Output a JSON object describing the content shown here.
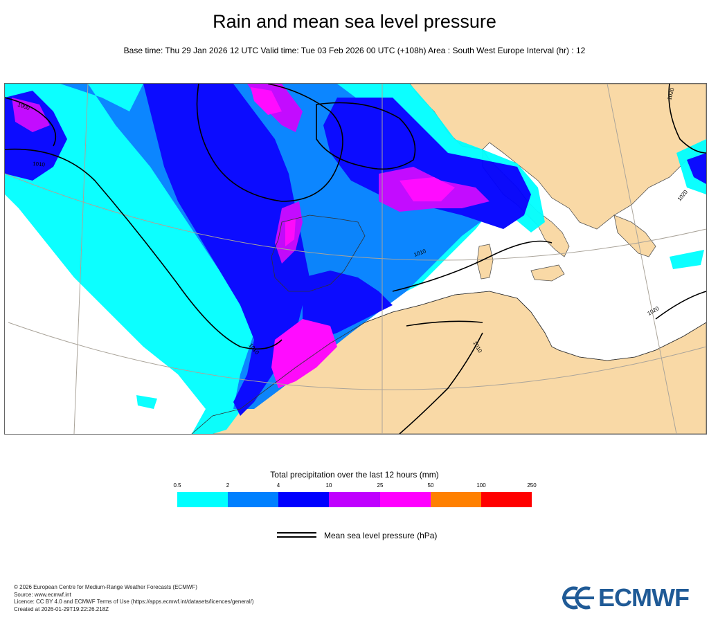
{
  "header": {
    "title": "Rain and mean sea level pressure",
    "subtitle": "Base time: Thu 29 Jan 2026 12 UTC Valid time: Tue 03 Feb 2026 00 UTC (+108h) Area : South West Europe Interval (hr) : 12"
  },
  "map": {
    "isobar_labels": [
      "1000",
      "1010",
      "1010",
      "1010",
      "1010",
      "1020",
      "1020",
      "1020"
    ],
    "colors": {
      "land": "#f9d9a6",
      "sea": "#ffffff",
      "isobar": "#000000",
      "border": "#555555"
    }
  },
  "legend": {
    "title": "Total precipitation over the last 12 hours (mm)",
    "ticks": [
      "0.5",
      "2",
      "4",
      "10",
      "25",
      "50",
      "100",
      "250"
    ],
    "colors": [
      "#00ffff",
      "#0080ff",
      "#0000ff",
      "#c000ff",
      "#ff00ff",
      "#ff8000",
      "#ff0000"
    ],
    "mslp_label": "Mean sea level pressure (hPa)"
  },
  "footer": {
    "lines": [
      "© 2026 European Centre for Medium-Range Weather Forecasts (ECMWF)",
      "Source: www.ecmwf.int",
      "Licence: CC BY 4.0 and ECMWF Terms of Use (https://apps.ecmwf.int/datasets/licences/general/)",
      "Created at 2026-01-29T19:22:26.218Z"
    ],
    "logo_text": "ECMWF"
  }
}
